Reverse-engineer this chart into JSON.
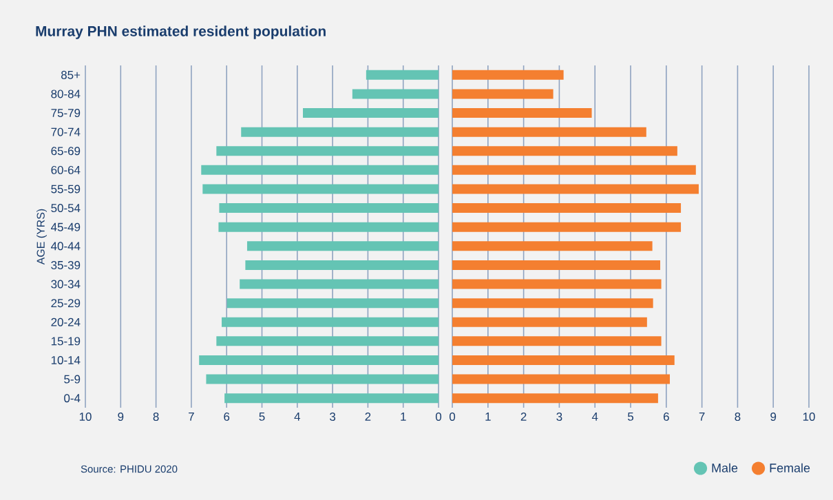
{
  "chart_data": [
    {
      "type": "bar",
      "orientation": "horizontal",
      "title": "Murray PHN estimated resident population",
      "ylabel": "AGE (YRS)",
      "categories": [
        "85+",
        "80-84",
        "75-79",
        "70-74",
        "65-69",
        "60-64",
        "55-59",
        "50-54",
        "45-49",
        "40-44",
        "35-39",
        "30-34",
        "25-29",
        "20-24",
        "15-19",
        "10-14",
        "5-9",
        "0-4"
      ],
      "series": [
        {
          "name": "Male",
          "color": "#64c4b4",
          "values": [
            2.05,
            2.44,
            3.84,
            5.59,
            6.29,
            6.72,
            6.68,
            6.21,
            6.23,
            5.42,
            5.47,
            5.63,
            5.99,
            6.14,
            6.29,
            6.78,
            6.58,
            6.06
          ]
        }
      ],
      "xlim": [
        10,
        0
      ],
      "xticks": [
        10,
        9,
        8,
        7,
        6,
        5,
        4,
        3,
        2,
        1,
        0
      ],
      "grid": "x",
      "legend": "bottom right",
      "annotations": [
        "Source: PHIDU 2020"
      ]
    },
    {
      "type": "bar",
      "orientation": "horizontal",
      "categories": [
        null,
        null,
        null,
        null,
        null,
        null,
        null,
        null,
        null,
        null,
        null,
        null,
        null,
        null,
        null,
        null,
        null,
        null
      ],
      "series": [
        {
          "name": "Female",
          "color": "#f47f30",
          "values": [
            3.12,
            2.83,
            3.91,
            5.44,
            6.31,
            6.83,
            6.91,
            6.41,
            6.41,
            5.61,
            5.83,
            5.86,
            5.63,
            5.46,
            5.86,
            6.23,
            6.1,
            5.77
          ]
        }
      ],
      "xlim": [
        0,
        10
      ],
      "xticks": [
        0,
        1,
        2,
        3,
        4,
        5,
        6,
        7,
        8,
        9,
        10
      ],
      "grid": "x",
      "legend": "bottom right",
      "tick_labels": "x"
    }
  ]
}
